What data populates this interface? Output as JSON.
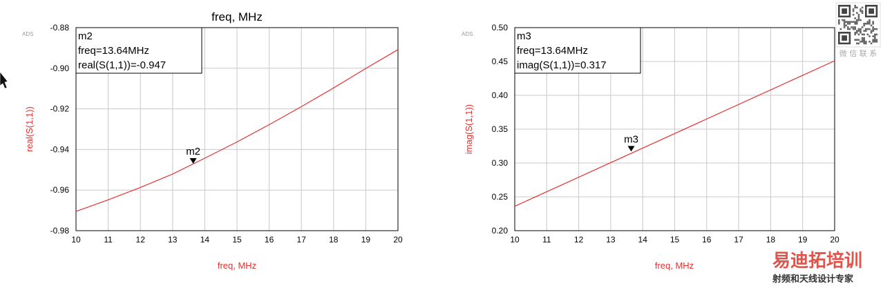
{
  "top_caption": "freq, MHz",
  "charts": [
    {
      "ads_label": "ADS",
      "marker_box": {
        "line1": "m2",
        "line2": "freq=13.64MHz",
        "line3": "real(S(1,1))=-0.947"
      }
    },
    {
      "ads_label": "ADS",
      "marker_box": {
        "line1": "m3",
        "line2": "freq=13.64MHz",
        "line3": "imag(S(1,1))=0.317"
      }
    }
  ],
  "chart_data": [
    {
      "type": "line",
      "xlabel": "freq, MHz",
      "ylabel": "real(S(1,1))",
      "xlim": [
        10,
        20
      ],
      "ylim": [
        -0.98,
        -0.88
      ],
      "x_ticks": [
        "10",
        "11",
        "12",
        "13",
        "14",
        "15",
        "16",
        "17",
        "18",
        "19",
        "20"
      ],
      "y_ticks": [
        "-0.98",
        "-0.96",
        "-0.94",
        "-0.92",
        "-0.90",
        "-0.88"
      ],
      "grid": true,
      "series": [
        {
          "color": "#e53030",
          "x": [
            10,
            11,
            12,
            13,
            14,
            15,
            16,
            17,
            18,
            19,
            20
          ],
          "y": [
            -0.9705,
            -0.9648,
            -0.9587,
            -0.9521,
            -0.9443,
            -0.9363,
            -0.9278,
            -0.9189,
            -0.9097,
            -0.9001,
            -0.8908
          ]
        }
      ],
      "marker": {
        "label": "m2",
        "x": 13.64,
        "y": -0.947
      }
    },
    {
      "type": "line",
      "xlabel": "freq, MHz",
      "ylabel": "imag(S(1,1))",
      "xlim": [
        10,
        20
      ],
      "ylim": [
        0.2,
        0.5
      ],
      "x_ticks": [
        "10",
        "11",
        "12",
        "13",
        "14",
        "15",
        "16",
        "17",
        "18",
        "19",
        "20"
      ],
      "y_ticks": [
        "0.20",
        "0.25",
        "0.30",
        "0.35",
        "0.40",
        "0.45",
        "0.50"
      ],
      "grid": true,
      "series": [
        {
          "color": "#e53030",
          "x": [
            10,
            20
          ],
          "y": [
            0.236,
            0.451
          ]
        }
      ],
      "marker": {
        "label": "m3",
        "x": 13.64,
        "y": 0.317
      }
    }
  ],
  "watermark": {
    "qr_caption": "微 信 联 系",
    "brand_title": "易迪拓培训",
    "brand_subtitle": "射频和天线设计专家",
    "colors": {
      "brand_red": "#d9362c",
      "brand_dark": "#333333"
    }
  }
}
